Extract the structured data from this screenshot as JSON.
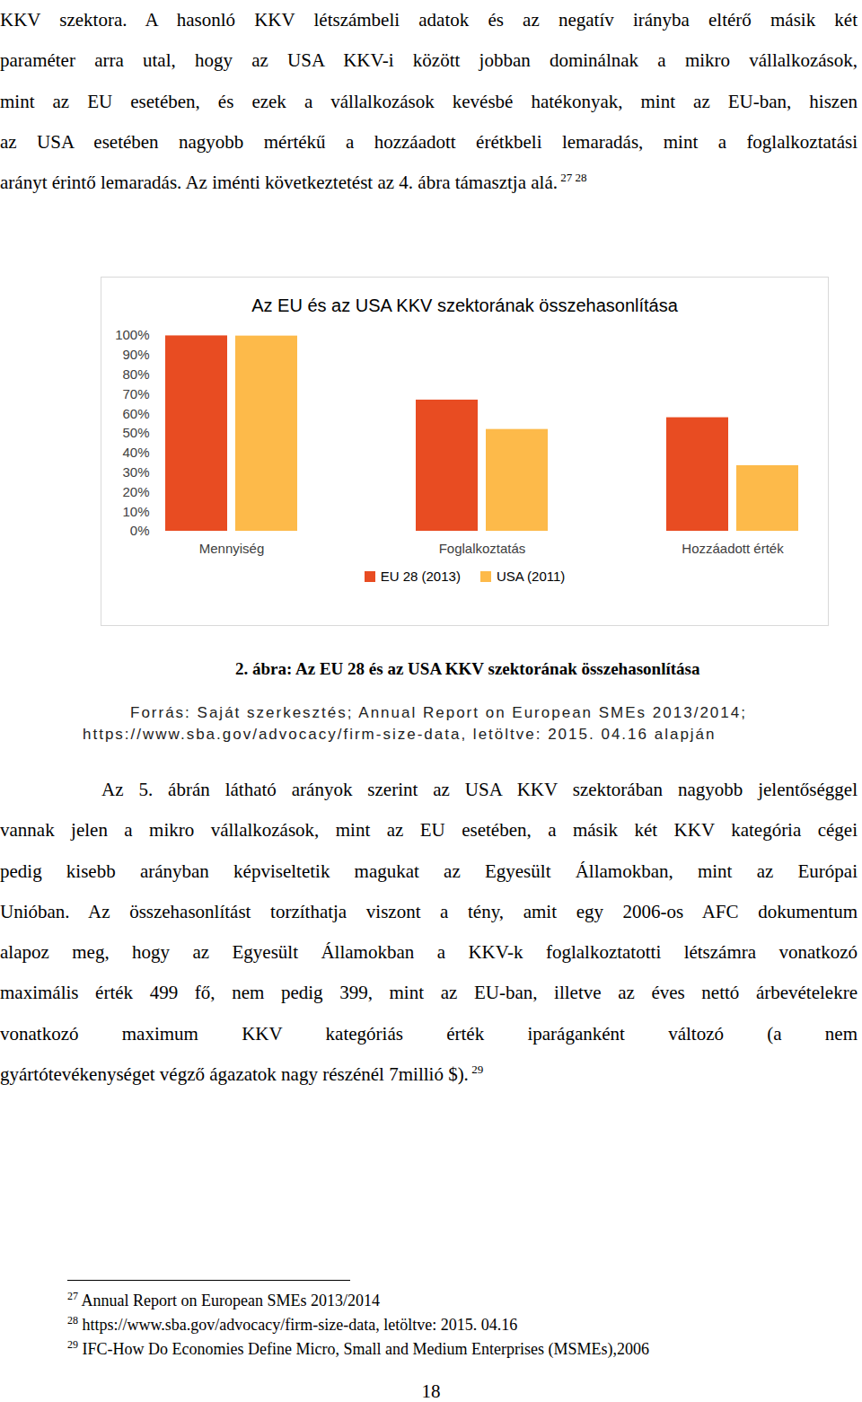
{
  "paragraph_1": {
    "lines": [
      "KKV szektora. A hasonló KKV létszámbeli adatok és az negatív irányba eltérő másik két",
      "paraméter arra utal, hogy az USA KKV-i között jobban dominálnak a mikro vállalkozások,",
      "mint az EU esetében, és ezek a vállalkozások kevésbé hatékonyak, mint az EU-ban, hiszen",
      "az USA esetében nagyobb mértékű a hozzáadott érétkbeli lemaradás, mint a foglalkoztatási",
      "arányt érintő lemaradás. Az iménti következtetést az 4. ábra támasztja alá."
    ],
    "superscript": "27 28"
  },
  "chart_data": {
    "type": "bar",
    "title": "Az EU és az USA KKV szektorának összehasonlítása",
    "categories": [
      "Mennyiség",
      "Foglalkoztatás",
      "Hozzáadott érték"
    ],
    "series": [
      {
        "name": "EU 28 (2013)",
        "color": "#E84C22",
        "values": [
          99.8,
          67,
          58
        ]
      },
      {
        "name": "USA (2011)",
        "color": "#FDBA4A",
        "values": [
          99.7,
          52,
          33.5
        ]
      }
    ],
    "ylim": [
      0,
      100
    ],
    "yticks": [
      {
        "value": 0,
        "label": "0%"
      },
      {
        "value": 10,
        "label": "10%"
      },
      {
        "value": 20,
        "label": "20%"
      },
      {
        "value": 30,
        "label": "30%"
      },
      {
        "value": 40,
        "label": "40%"
      },
      {
        "value": 50,
        "label": "50%"
      },
      {
        "value": 60,
        "label": "60%"
      },
      {
        "value": 70,
        "label": "70%"
      },
      {
        "value": 80,
        "label": "80%"
      },
      {
        "value": 90,
        "label": "90%"
      },
      {
        "value": 100,
        "label": "100%"
      }
    ],
    "grid": false,
    "legend": "bottom"
  },
  "figure_caption": {
    "label": "2. ábra:",
    "title": "Az EU 28 és az USA KKV szektorának összehasonlítása",
    "source": [
      "Forrás: Saját szerkesztés; Annual Report on European SMEs 2013/2014;",
      "https://www.sba.gov/advocacy/firm-size-data, letöltve: 2015. 04.16 alapján"
    ]
  },
  "paragraph_2": {
    "lines": [
      "Az 5. ábrán látható arányok szerint az USA KKV szektorában nagyobb jelentőséggel",
      "vannak jelen a mikro vállalkozások, mint az EU esetében, a másik két KKV kategória cégei",
      "pedig kisebb arányban képviseltetik magukat az Egyesült Államokban, mint az Európai",
      "Unióban. Az összehasonlítást torzíthatja viszont a tény, amit egy 2006-os AFC dokumentum",
      "alapoz meg, hogy az Egyesült Államokban a KKV-k foglalkoztatotti létszámra vonatkozó",
      "maximális érték 499 fő, nem pedig 399, mint az EU-ban, illetve az éves nettó árbevételekre",
      "vonatkozó maximum KKV kategóriás érték iparáganként változó (a nem",
      "gyártótevékenységet végző ágazatok nagy részénél 7millió $)."
    ],
    "superscript": "29"
  },
  "footnotes": [
    {
      "number": "27",
      "text": "Annual Report on European SMEs 2013/2014"
    },
    {
      "number": "28",
      "text": "https://www.sba.gov/advocacy/firm-size-data, letöltve: 2015. 04.16"
    },
    {
      "number": "29",
      "text": "IFC-How Do Economies Define Micro, Small and Medium Enterprises (MSMEs),2006"
    }
  ],
  "page_number": "18"
}
